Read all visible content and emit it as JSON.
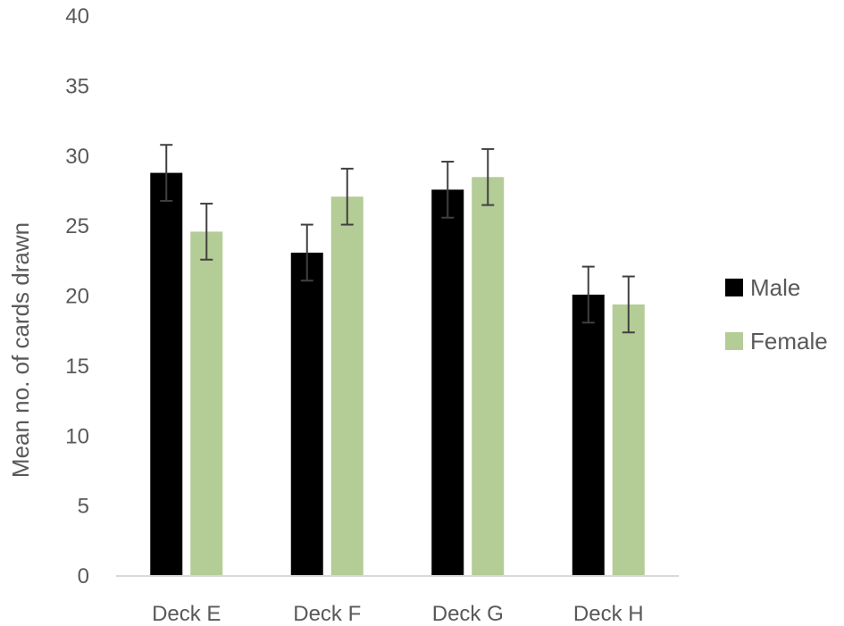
{
  "chart_data": {
    "type": "bar",
    "title": "",
    "xlabel": "",
    "ylabel": "Mean no. of cards drawn",
    "ylim": [
      0,
      40
    ],
    "yticks": [
      0,
      5,
      10,
      15,
      20,
      25,
      30,
      35,
      40
    ],
    "ytick_labels": [
      "0",
      "5",
      "10",
      "15",
      "20",
      "25",
      "30",
      "35",
      "40"
    ],
    "categories": [
      "Deck E",
      "Deck F",
      "Deck G",
      "Deck H"
    ],
    "series": [
      {
        "name": "Male",
        "color": "#000000",
        "values": [
          28.8,
          23.1,
          27.6,
          20.1
        ],
        "errors": [
          2.0,
          2.0,
          2.0,
          2.0
        ]
      },
      {
        "name": "Female",
        "color": "#b4cc96",
        "values": [
          24.6,
          27.1,
          28.5,
          19.4
        ],
        "errors": [
          2.0,
          2.0,
          2.0,
          2.0
        ]
      }
    ],
    "grid": false,
    "legend_position": "right"
  }
}
